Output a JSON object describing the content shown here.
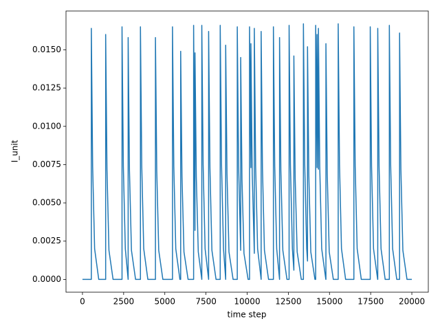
{
  "chart_data": {
    "type": "line",
    "xlabel": "time step",
    "ylabel": "I_unit",
    "color": "#1f77b4",
    "x": [
      0,
      538,
      538,
      618,
      738,
      988,
      1408,
      1408,
      1488,
      1608,
      1858,
      2402,
      2402,
      2482,
      2602,
      2774,
      2774,
      2854,
      2974,
      3224,
      3520,
      3520,
      3600,
      3720,
      3970,
      4431,
      4431,
      4511,
      4631,
      4881,
      5466,
      5466,
      5546,
      5666,
      5916,
      5963,
      5963,
      6043,
      6163,
      6413,
      6749,
      6749,
      6832,
      6832,
      6912,
      7032,
      7246,
      7246,
      7326,
      7446,
      7660,
      7660,
      7740,
      7860,
      8110,
      8364,
      8364,
      8444,
      8564,
      8696,
      8696,
      8776,
      8896,
      9146,
      9400,
      9400,
      9480,
      9607,
      9607,
      9687,
      9807,
      10057,
      10145,
      10145,
      10228,
      10228,
      10308,
      10435,
      10435,
      10515,
      10635,
      10849,
      10849,
      10929,
      11049,
      11299,
      11594,
      11594,
      11674,
      11794,
      11967,
      11967,
      12047,
      12167,
      12417,
      12547,
      12547,
      12627,
      12747,
      12836,
      12836,
      12916,
      13036,
      13286,
      13416,
      13416,
      13496,
      13616,
      13665,
      13665,
      13745,
      13865,
      14115,
      14161,
      14161,
      14244,
      14244,
      14327,
      14327,
      14407,
      14527,
      14777,
      14783,
      14783,
      14863,
      14983,
      15233,
      15528,
      15528,
      15608,
      15728,
      15978,
      16480,
      16480,
      16560,
      16680,
      16930,
      17474,
      17474,
      17554,
      17674,
      17924,
      17930,
      17930,
      18010,
      18130,
      18380,
      18634,
      18634,
      18714,
      18834,
      19084,
      19255,
      19255,
      19335,
      19455,
      19705,
      20000
    ],
    "values": [
      0,
      0,
      0.0164,
      0.0074,
      0.002,
      0,
      0,
      0.016,
      0.0072,
      0.0019,
      0,
      0,
      0.0165,
      0.0074,
      0.002,
      0,
      0.0158,
      0.0071,
      0.0019,
      0,
      0,
      0.0165,
      0.0074,
      0.002,
      0,
      0,
      0.0158,
      0.0071,
      0.0019,
      0,
      0,
      0.0165,
      0.0074,
      0.002,
      0,
      0,
      0.0149,
      0.0067,
      0.0018,
      0,
      0,
      0.0166,
      0.0032,
      0.0148,
      0.0067,
      0.0018,
      0,
      0.0166,
      0.0075,
      0.002,
      0,
      0.0162,
      0.0073,
      0.0019,
      0,
      0,
      0.0166,
      0.0075,
      0.002,
      0,
      0.0153,
      0.0069,
      0.0018,
      0,
      0,
      0.0165,
      0.0074,
      0.0019,
      0.0145,
      0.0065,
      0.0017,
      0,
      0,
      0.0165,
      0.0073,
      0.0154,
      0.0069,
      0.0017,
      0.0164,
      0.0074,
      0.002,
      0,
      0.0162,
      0.0073,
      0.0019,
      0,
      0,
      0.0165,
      0.0074,
      0.002,
      0,
      0.0158,
      0.0071,
      0.0019,
      0,
      0,
      0.0166,
      0.0075,
      0.002,
      0.0006,
      0.0146,
      0.0066,
      0.0018,
      0,
      0,
      0.0167,
      0.0075,
      0.002,
      0.0012,
      0.0152,
      0.0068,
      0.0018,
      0,
      0,
      0.0166,
      0.0073,
      0.016,
      0.0072,
      0.0164,
      0.0074,
      0.002,
      0,
      0,
      0.0154,
      0.0069,
      0.0018,
      0,
      0,
      0.0167,
      0.0075,
      0.002,
      0,
      0,
      0.0165,
      0.0074,
      0.002,
      0,
      0,
      0.0165,
      0.0074,
      0.002,
      0,
      0,
      0.0164,
      0.0074,
      0.002,
      0,
      0,
      0.0166,
      0.0075,
      0.002,
      0,
      0,
      0.0161,
      0.0072,
      0.0019,
      0,
      0
    ],
    "xlim": [
      -1000,
      21000
    ],
    "xticks": [
      0,
      2500,
      5000,
      7500,
      10000,
      12500,
      15000,
      17500,
      20000
    ],
    "ylim": [
      -0.000835,
      0.017535
    ],
    "yticks": [
      {
        "value": 0,
        "label": "0.0000"
      },
      {
        "value": 0.0025,
        "label": "0.0025"
      },
      {
        "value": 0.005,
        "label": "0.0050"
      },
      {
        "value": 0.0075,
        "label": "0.0075"
      },
      {
        "value": 0.01,
        "label": "0.0100"
      },
      {
        "value": 0.0125,
        "label": "0.0125"
      },
      {
        "value": 0.015,
        "label": "0.0150"
      }
    ]
  }
}
